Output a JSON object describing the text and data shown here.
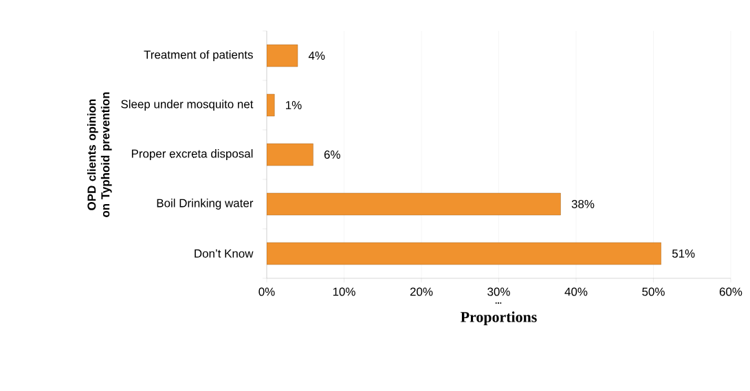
{
  "chart_data": {
    "type": "bar",
    "orientation": "horizontal",
    "categories": [
      "Treatment of patients",
      "Sleep under mosquito net",
      "Proper excreta disposal",
      "Boil Drinking water",
      "Don’t Know"
    ],
    "values": [
      4,
      1,
      6,
      38,
      51
    ],
    "value_labels": [
      "4%",
      "1%",
      "6%",
      "38%",
      "51%"
    ],
    "color": "#f0922e",
    "xlim": [
      0,
      60
    ],
    "xticks": [
      {
        "value": 0,
        "label": "0%"
      },
      {
        "value": 10,
        "label": "10%"
      },
      {
        "value": 20,
        "label": "20%"
      },
      {
        "value": 30,
        "label": "30%"
      },
      {
        "value": 40,
        "label": "40%"
      },
      {
        "value": 50,
        "label": "50%"
      },
      {
        "value": 60,
        "label": "60%"
      }
    ],
    "xlabel": "Proportions",
    "ylabel": "OPD clients opinion on Typhoid prevention",
    "annotations": [
      "..."
    ],
    "grid": "x"
  }
}
